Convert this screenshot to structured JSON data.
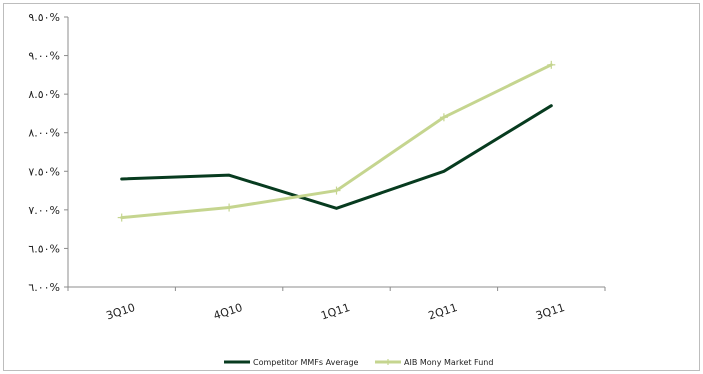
{
  "chart_data": {
    "type": "line",
    "title": "",
    "xlabel": "",
    "ylabel": "",
    "categories": [
      "3Q10",
      "4Q10",
      "1Q11",
      "2Q11",
      "3Q11"
    ],
    "series": [
      {
        "name": "Competitor MMFs Average",
        "color": "#073b1f",
        "values": [
          7.4,
          7.45,
          7.02,
          7.5,
          8.35
        ]
      },
      {
        "name": "AIB Mony Market Fund",
        "color": "#c5d58f",
        "values": [
          6.9,
          7.03,
          7.25,
          8.2,
          8.88
        ]
      }
    ],
    "ylim": [
      6.0,
      9.5
    ],
    "yticks": [
      {
        "value": 6.0,
        "label": "٦.٠٠%"
      },
      {
        "value": 6.5,
        "label": "٦.٥٠%"
      },
      {
        "value": 7.0,
        "label": "٧.٠٠%"
      },
      {
        "value": 7.5,
        "label": "٧.٥٠%"
      },
      {
        "value": 8.0,
        "label": "٨.٠٠%"
      },
      {
        "value": 8.5,
        "label": "٨.٥٠%"
      },
      {
        "value": 9.0,
        "label": "٩.٠٠%"
      },
      {
        "value": 9.5,
        "label": "٩.٥٠%"
      }
    ],
    "grid": false,
    "legend_position": "bottom"
  }
}
